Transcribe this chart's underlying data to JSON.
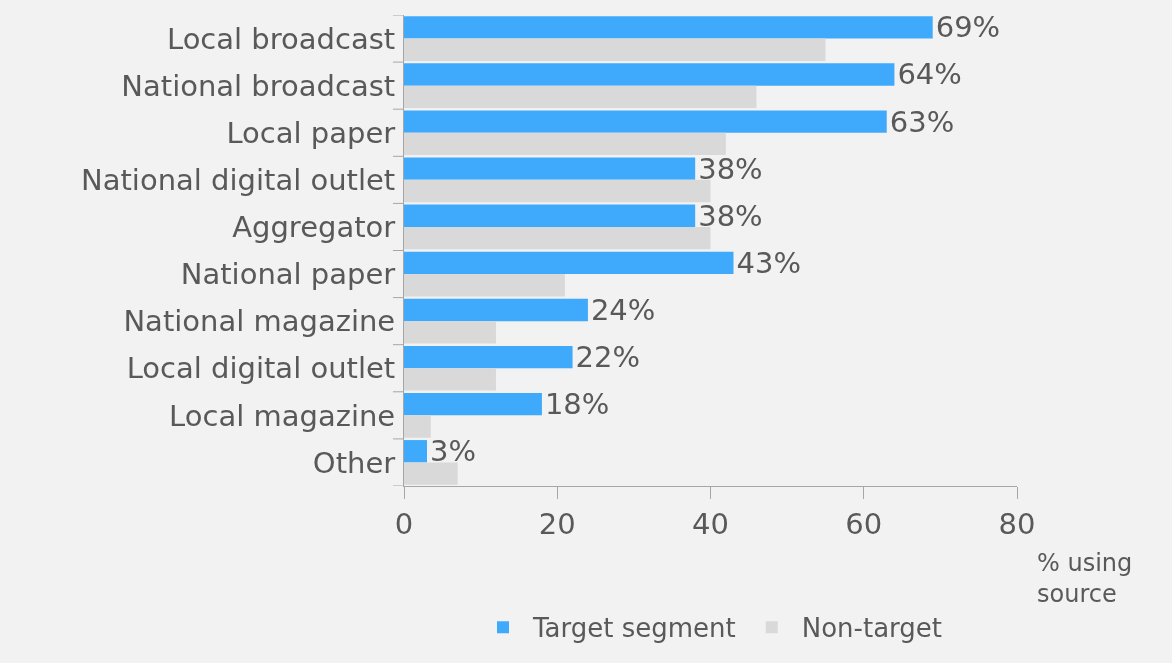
{
  "chart_data": {
    "type": "bar",
    "orientation": "horizontal",
    "xlabel": "% using source",
    "categories": [
      "Local broadcast",
      "National broadcast",
      "Local paper",
      "National digital outlet",
      "Aggregator",
      "National paper",
      "National magazine",
      "Local digital outlet",
      "Local magazine",
      "Other"
    ],
    "series": [
      {
        "name": "Target segment",
        "color": "#3fa9fc",
        "values": [
          69,
          64,
          63,
          38,
          38,
          43,
          24,
          22,
          18,
          3
        ],
        "value_labels": [
          "69%",
          "64%",
          "63%",
          "38%",
          "38%",
          "43%",
          "24%",
          "22%",
          "18%",
          "3%"
        ]
      },
      {
        "name": "Non-target",
        "color": "#d9d9d9",
        "values": [
          55,
          46,
          42,
          40,
          40,
          21,
          12,
          12,
          3.5,
          7
        ]
      }
    ],
    "xlim": [
      0,
      80
    ],
    "xticks": [
      0,
      20,
      40,
      60,
      80
    ],
    "grid": false,
    "legend": "bottom"
  }
}
